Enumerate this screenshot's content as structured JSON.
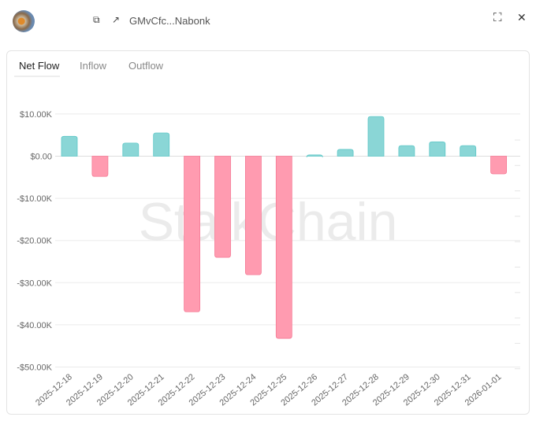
{
  "header": {
    "address": "GMvCfc...Nabonk",
    "copy_icon": "copy-icon",
    "link_icon": "external-link-icon",
    "expand_icon": "expand-icon",
    "close_icon": "close-icon"
  },
  "tabs": [
    {
      "label": "Net Flow",
      "active": true
    },
    {
      "label": "Inflow"
    },
    {
      "label": "Outflow"
    }
  ],
  "watermark": "StalkChain",
  "colors": {
    "positive": "#8ad6d6",
    "positive_border": "#5cc7c7",
    "negative": "#ff9bb0",
    "negative_border": "#f57a95"
  },
  "chart_data": {
    "type": "bar",
    "title": "Net Flow",
    "categories": [
      "2025-12-18",
      "2025-12-19",
      "2025-12-20",
      "2025-12-21",
      "2025-12-22",
      "2025-12-23",
      "2025-12-24",
      "2025-12-25",
      "2025-12-26",
      "2025-12-27",
      "2025-12-28",
      "2025-12-29",
      "2025-12-30",
      "2025-12-31",
      "2026-01-01"
    ],
    "values": [
      4.7,
      -4.8,
      3.1,
      5.5,
      -36.9,
      -24.0,
      -28.1,
      -43.2,
      0.3,
      1.6,
      9.4,
      2.5,
      3.4,
      2.5,
      -4.2
    ],
    "units": "thousand USD",
    "ylim": [
      -50,
      10
    ],
    "yticks": [
      10,
      0,
      -10,
      -20,
      -30,
      -40,
      -50
    ],
    "ytick_labels": [
      "$10.00K",
      "$0.00",
      "-$10.00K",
      "-$20.00K",
      "-$30.00K",
      "-$40.00K",
      "-$50.00K"
    ],
    "grid": true
  }
}
